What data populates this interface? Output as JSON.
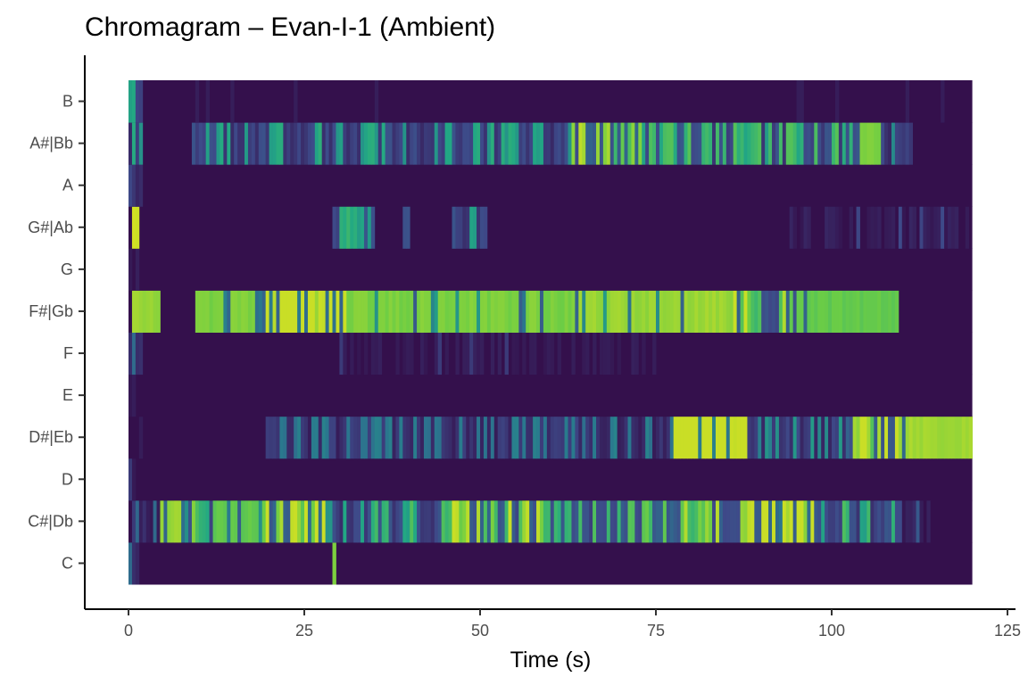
{
  "chart_data": {
    "type": "heatmap",
    "title": "Chromagram – Evan-I-1 (Ambient)",
    "xlabel": "Time (s)",
    "ylabel": "",
    "xlim": [
      0,
      120
    ],
    "x_ticks": [
      0,
      25,
      50,
      75,
      100,
      125
    ],
    "x_tick_labels": [
      "0",
      "25",
      "50",
      "75",
      "100",
      "125"
    ],
    "pitch_classes": [
      "C",
      "C#|Db",
      "D",
      "D#|Eb",
      "E",
      "F",
      "F#|Gb",
      "G",
      "G#|Ab",
      "A",
      "A#|Bb",
      "B"
    ],
    "color_scale": "viridis",
    "colors": {
      "low": "#330a45",
      "high": "#6ccd45",
      "peak": "#e8e41b"
    },
    "time_step_s": 0.5,
    "background_value": 0.02,
    "active_segments": [
      {
        "pitch": "C",
        "start": 0.0,
        "end": 1.5,
        "value": 0.25
      },
      {
        "pitch": "C",
        "start": 28.7,
        "end": 29.2,
        "value": 0.85
      },
      {
        "pitch": "C#|Db",
        "start": 0.3,
        "end": 4.3,
        "value": 0.25
      },
      {
        "pitch": "C#|Db",
        "start": 4.3,
        "end": 8.5,
        "value": 0.9
      },
      {
        "pitch": "C#|Db",
        "start": 8.5,
        "end": 12.0,
        "value": 0.5
      },
      {
        "pitch": "C#|Db",
        "start": 12.0,
        "end": 19.5,
        "value": 0.8
      },
      {
        "pitch": "C#|Db",
        "start": 19.5,
        "end": 28.0,
        "value": 0.6
      },
      {
        "pitch": "C#|Db",
        "start": 28.0,
        "end": 35.0,
        "value": 0.4
      },
      {
        "pitch": "C#|Db",
        "start": 35.0,
        "end": 45.0,
        "value": 0.45
      },
      {
        "pitch": "C#|Db",
        "start": 45.0,
        "end": 60.0,
        "value": 0.55
      },
      {
        "pitch": "C#|Db",
        "start": 60.0,
        "end": 75.0,
        "value": 0.5
      },
      {
        "pitch": "C#|Db",
        "start": 75.0,
        "end": 87.0,
        "value": 0.55
      },
      {
        "pitch": "C#|Db",
        "start": 87.0,
        "end": 98.0,
        "value": 0.65
      },
      {
        "pitch": "C#|Db",
        "start": 98.0,
        "end": 110.0,
        "value": 0.45
      },
      {
        "pitch": "C#|Db",
        "start": 110.0,
        "end": 114.0,
        "value": 0.2
      },
      {
        "pitch": "D",
        "start": 0.0,
        "end": 2.0,
        "value": 0.12
      },
      {
        "pitch": "D#|Eb",
        "start": 0.0,
        "end": 2.0,
        "value": 0.1
      },
      {
        "pitch": "D#|Eb",
        "start": 19.5,
        "end": 77.0,
        "value": 0.3
      },
      {
        "pitch": "D#|Eb",
        "start": 77.0,
        "end": 88.0,
        "value": 0.75
      },
      {
        "pitch": "D#|Eb",
        "start": 88.0,
        "end": 102.0,
        "value": 0.35
      },
      {
        "pitch": "D#|Eb",
        "start": 102.0,
        "end": 109.5,
        "value": 0.6
      },
      {
        "pitch": "D#|Eb",
        "start": 109.5,
        "end": 120.0,
        "value": 0.92
      },
      {
        "pitch": "E",
        "start": 0.0,
        "end": 1.5,
        "value": 0.12
      },
      {
        "pitch": "F",
        "start": 0.0,
        "end": 2.0,
        "value": 0.25
      },
      {
        "pitch": "F",
        "start": 30.0,
        "end": 75.0,
        "value": 0.12
      },
      {
        "pitch": "F#|Gb",
        "start": 0.5,
        "end": 4.5,
        "value": 0.9
      },
      {
        "pitch": "F#|Gb",
        "start": 9.5,
        "end": 18.0,
        "value": 0.85
      },
      {
        "pitch": "F#|Gb",
        "start": 18.0,
        "end": 31.0,
        "value": 0.7
      },
      {
        "pitch": "F#|Gb",
        "start": 31.0,
        "end": 64.0,
        "value": 0.85
      },
      {
        "pitch": "F#|Gb",
        "start": 64.0,
        "end": 86.0,
        "value": 0.9
      },
      {
        "pitch": "F#|Gb",
        "start": 86.0,
        "end": 95.0,
        "value": 0.55
      },
      {
        "pitch": "F#|Gb",
        "start": 95.0,
        "end": 109.5,
        "value": 0.8
      },
      {
        "pitch": "G",
        "start": 0.0,
        "end": 1.5,
        "value": 0.2
      },
      {
        "pitch": "G#|Ab",
        "start": 0.3,
        "end": 1.5,
        "value": 1.0
      },
      {
        "pitch": "G#|Ab",
        "start": 29.0,
        "end": 35.0,
        "value": 0.45
      },
      {
        "pitch": "G#|Ab",
        "start": 39.0,
        "end": 40.0,
        "value": 0.6
      },
      {
        "pitch": "G#|Ab",
        "start": 46.0,
        "end": 51.0,
        "value": 0.4
      },
      {
        "pitch": "G#|Ab",
        "start": 94.0,
        "end": 120.0,
        "value": 0.15
      },
      {
        "pitch": "A",
        "start": 0.0,
        "end": 2.0,
        "value": 0.35
      },
      {
        "pitch": "A#|Bb",
        "start": 0.0,
        "end": 2.0,
        "value": 0.4
      },
      {
        "pitch": "A#|Bb",
        "start": 9.0,
        "end": 63.0,
        "value": 0.4
      },
      {
        "pitch": "A#|Bb",
        "start": 63.0,
        "end": 73.0,
        "value": 0.55
      },
      {
        "pitch": "A#|Bb",
        "start": 73.0,
        "end": 104.0,
        "value": 0.45
      },
      {
        "pitch": "A#|Bb",
        "start": 104.0,
        "end": 107.0,
        "value": 0.85
      },
      {
        "pitch": "A#|Bb",
        "start": 107.0,
        "end": 111.5,
        "value": 0.35
      },
      {
        "pitch": "B",
        "start": 0.0,
        "end": 2.0,
        "value": 0.45
      },
      {
        "pitch": "B",
        "start": 2.0,
        "end": 120.0,
        "value": 0.05
      }
    ]
  }
}
